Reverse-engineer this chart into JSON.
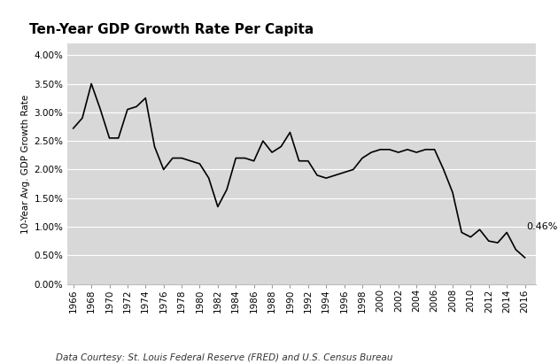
{
  "title": "Ten-Year GDP Growth Rate Per Capita",
  "ylabel": "10-Year Avg. GDP Growth Rate",
  "footnote": "Data Courtesy: St. Louis Federal Reserve (FRED) and U.S. Census Bureau",
  "annotation": "0.46%",
  "fig_bg_color": "#ffffff",
  "plot_bg_color": "#d8d8d8",
  "line_color": "#000000",
  "grid_color": "#ffffff",
  "ylim": [
    0.0,
    0.042
  ],
  "yticks": [
    0.0,
    0.005,
    0.01,
    0.015,
    0.02,
    0.025,
    0.03,
    0.035,
    0.04
  ],
  "ytick_labels": [
    "0.00%",
    "0.50%",
    "1.00%",
    "1.50%",
    "2.00%",
    "2.50%",
    "3.00%",
    "3.50%",
    "4.00%"
  ],
  "years": [
    1966,
    1967,
    1968,
    1969,
    1970,
    1971,
    1972,
    1973,
    1974,
    1975,
    1976,
    1977,
    1978,
    1979,
    1980,
    1981,
    1982,
    1983,
    1984,
    1985,
    1986,
    1987,
    1988,
    1989,
    1990,
    1991,
    1992,
    1993,
    1994,
    1995,
    1996,
    1997,
    1998,
    1999,
    2000,
    2001,
    2002,
    2003,
    2004,
    2005,
    2006,
    2007,
    2008,
    2009,
    2010,
    2011,
    2012,
    2013,
    2014,
    2015,
    2016
  ],
  "values": [
    0.0272,
    0.029,
    0.035,
    0.0305,
    0.0255,
    0.0255,
    0.0305,
    0.031,
    0.0325,
    0.024,
    0.02,
    0.022,
    0.022,
    0.0215,
    0.021,
    0.0185,
    0.0135,
    0.0165,
    0.022,
    0.022,
    0.0215,
    0.025,
    0.023,
    0.024,
    0.0265,
    0.0215,
    0.0215,
    0.019,
    0.0185,
    0.019,
    0.0195,
    0.02,
    0.022,
    0.023,
    0.0235,
    0.0235,
    0.023,
    0.0235,
    0.023,
    0.0235,
    0.0235,
    0.02,
    0.016,
    0.009,
    0.0082,
    0.0095,
    0.0075,
    0.0072,
    0.009,
    0.006,
    0.0046
  ],
  "xtick_years": [
    1966,
    1968,
    1970,
    1972,
    1974,
    1976,
    1978,
    1980,
    1982,
    1984,
    1986,
    1988,
    1990,
    1992,
    1994,
    1996,
    1998,
    2000,
    2002,
    2004,
    2006,
    2008,
    2010,
    2012,
    2014,
    2016
  ],
  "title_fontsize": 11,
  "axis_label_fontsize": 7.5,
  "tick_fontsize": 7.5,
  "footnote_fontsize": 7.5,
  "annotation_fontsize": 8
}
